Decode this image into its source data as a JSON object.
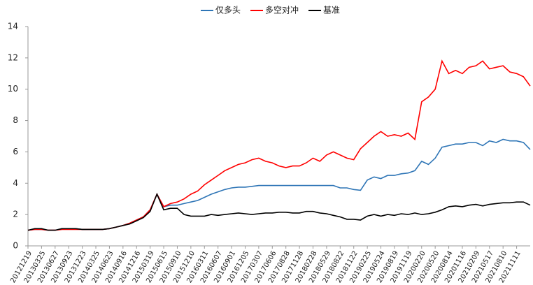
{
  "chart_data": {
    "type": "line",
    "categories": [
      "20121219",
      null,
      "20130325",
      null,
      "20130627",
      null,
      "20130923",
      null,
      "20131223",
      null,
      "20140325",
      null,
      "20140623",
      null,
      "20140916",
      null,
      "20141216",
      null,
      "20150319",
      null,
      "20150615",
      null,
      "20150910",
      null,
      "20151210",
      null,
      "20160311",
      null,
      "20160607",
      null,
      "20160901",
      null,
      "20161205",
      null,
      "20170307",
      null,
      "20170606",
      null,
      "20170828",
      null,
      "20171128",
      null,
      "20180228",
      null,
      "20180529",
      null,
      "20180822",
      null,
      "20181122",
      null,
      "20190225",
      null,
      "20190524",
      null,
      "20190819",
      null,
      "20191119",
      null,
      "20200220",
      null,
      "20200520",
      null,
      "20200814",
      null,
      "20201116",
      null,
      "20210209",
      null,
      "20210517",
      null,
      "20210810",
      null,
      "20211111",
      null,
      null
    ],
    "series": [
      {
        "name": "仅多头",
        "color": "#2e75b6",
        "values": [
          1.0,
          1.05,
          1.05,
          1.0,
          1.0,
          1.1,
          1.1,
          1.1,
          1.05,
          1.05,
          1.05,
          1.05,
          1.1,
          1.2,
          1.3,
          1.45,
          1.65,
          1.85,
          2.3,
          3.3,
          2.5,
          2.6,
          2.6,
          2.7,
          2.8,
          2.9,
          3.1,
          3.3,
          3.45,
          3.6,
          3.7,
          3.75,
          3.75,
          3.8,
          3.85,
          3.85,
          3.85,
          3.85,
          3.85,
          3.85,
          3.85,
          3.85,
          3.85,
          3.85,
          3.85,
          3.85,
          3.7,
          3.7,
          3.6,
          3.55,
          4.2,
          4.4,
          4.3,
          4.5,
          4.5,
          4.6,
          4.65,
          4.8,
          5.4,
          5.2,
          5.6,
          6.3,
          6.4,
          6.5,
          6.5,
          6.6,
          6.6,
          6.4,
          6.7,
          6.6,
          6.8,
          6.7,
          6.7,
          6.6,
          6.15
        ]
      },
      {
        "name": "多空对冲",
        "color": "#ff0000",
        "values": [
          1.0,
          1.05,
          1.05,
          1.0,
          1.0,
          1.05,
          1.05,
          1.05,
          1.05,
          1.05,
          1.05,
          1.05,
          1.1,
          1.2,
          1.3,
          1.45,
          1.65,
          1.85,
          2.3,
          3.3,
          2.5,
          2.7,
          2.8,
          3.0,
          3.3,
          3.5,
          3.9,
          4.2,
          4.5,
          4.8,
          5.0,
          5.2,
          5.3,
          5.5,
          5.6,
          5.4,
          5.3,
          5.1,
          5.0,
          5.1,
          5.1,
          5.3,
          5.6,
          5.4,
          5.8,
          6.0,
          5.8,
          5.6,
          5.5,
          6.2,
          6.6,
          7.0,
          7.3,
          7.0,
          7.1,
          7.0,
          7.2,
          6.8,
          9.2,
          9.5,
          10.0,
          11.8,
          11.0,
          11.2,
          11.0,
          11.4,
          11.5,
          11.8,
          11.3,
          11.4,
          11.5,
          11.1,
          11.0,
          10.8,
          10.2
        ]
      },
      {
        "name": "基准",
        "color": "#000000",
        "values": [
          1.0,
          1.1,
          1.1,
          1.0,
          1.0,
          1.1,
          1.1,
          1.1,
          1.05,
          1.05,
          1.05,
          1.05,
          1.1,
          1.2,
          1.3,
          1.4,
          1.6,
          1.8,
          2.2,
          3.3,
          2.3,
          2.4,
          2.4,
          2.0,
          1.9,
          1.9,
          1.9,
          2.0,
          1.95,
          2.0,
          2.05,
          2.1,
          2.05,
          2.0,
          2.05,
          2.1,
          2.1,
          2.15,
          2.15,
          2.1,
          2.1,
          2.2,
          2.2,
          2.1,
          2.05,
          1.95,
          1.85,
          1.7,
          1.7,
          1.65,
          1.9,
          2.0,
          1.9,
          2.0,
          1.95,
          2.05,
          2.0,
          2.1,
          2.0,
          2.05,
          2.15,
          2.3,
          2.5,
          2.55,
          2.5,
          2.6,
          2.65,
          2.55,
          2.65,
          2.7,
          2.75,
          2.75,
          2.8,
          2.8,
          2.6
        ]
      }
    ],
    "ylim": [
      0,
      14
    ],
    "yticks": [
      0,
      2,
      4,
      6,
      8,
      10,
      12,
      14
    ],
    "grid": false
  }
}
